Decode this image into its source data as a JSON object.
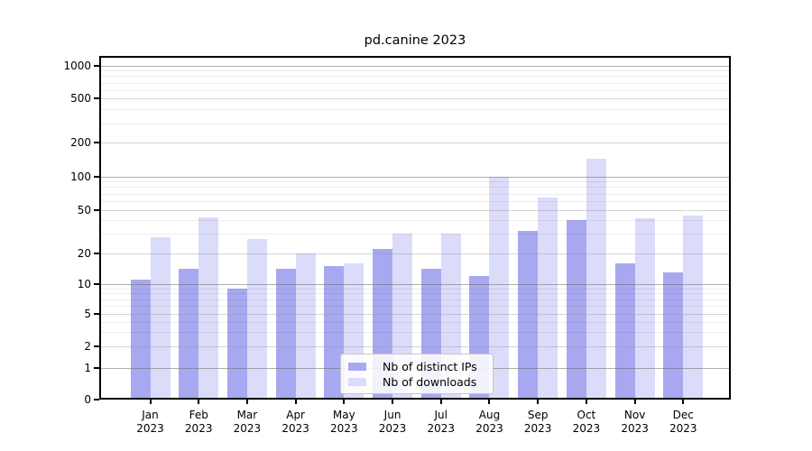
{
  "title": "pd.canine 2023",
  "chart_data": {
    "type": "bar",
    "title": "pd.canine 2023",
    "categories": [
      "Jan 2023",
      "Feb 2023",
      "Mar 2023",
      "Apr 2023",
      "May 2023",
      "Jun 2023",
      "Jul 2023",
      "Aug 2023",
      "Sep 2023",
      "Oct 2023",
      "Nov 2023",
      "Dec 2023"
    ],
    "series": [
      {
        "name": "Nb of distinct IPs",
        "color": "#a8a8f0",
        "values": [
          11,
          14,
          9,
          14,
          15,
          22,
          14,
          12,
          32,
          40,
          16,
          13
        ]
      },
      {
        "name": "Nb of downloads",
        "color": "#dbdbfa",
        "values": [
          28,
          43,
          27,
          20,
          16,
          30,
          30,
          100,
          65,
          145,
          42,
          44
        ]
      }
    ],
    "xlabel": "",
    "ylabel": "",
    "yticks": [
      0,
      1,
      2,
      5,
      10,
      20,
      50,
      100,
      200,
      500,
      1000
    ],
    "ylim": [
      0,
      1400
    ],
    "yscale": "quasi-log (0,1,2,5,10,20,50,100,200,500,1000)",
    "grid": true,
    "legend_position": "lower center",
    "colors": {
      "bar_dark": "#a8a8f0",
      "bar_light": "#dbdbfa",
      "axis": "#000000",
      "grid_major": "#6e6e6e",
      "grid_labeled": "#969696",
      "grid_minor": "#e8e8e8",
      "legend_border": "#c8c8c8"
    }
  }
}
